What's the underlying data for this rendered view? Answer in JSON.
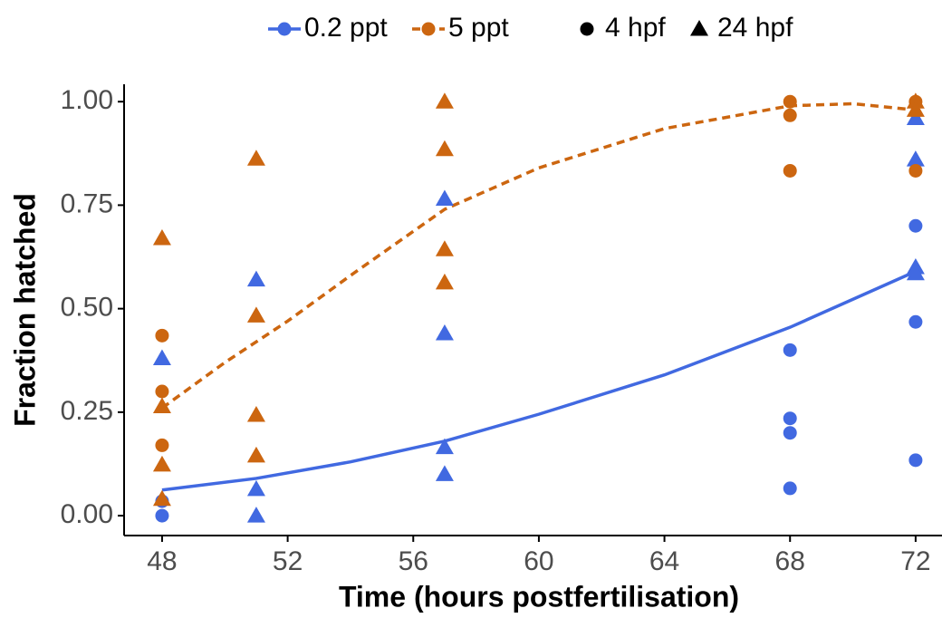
{
  "chart_data": {
    "type": "scatter",
    "x_label": "Time (hours postfertilisation)",
    "y_label": "Fraction hatched",
    "xlim": [
      46.79,
      72.84
    ],
    "ylim": [
      -0.048,
      1.042
    ],
    "xticks": [
      48,
      52,
      56,
      60,
      64,
      68,
      72
    ],
    "yticks": [
      {
        "value": 0,
        "label": "0.00"
      },
      {
        "value": 0.25,
        "label": "0.25"
      },
      {
        "value": 0.5,
        "label": "0.50"
      },
      {
        "value": 0.75,
        "label": "0.75"
      },
      {
        "value": 1,
        "label": "1.00"
      }
    ],
    "color_legend": [
      {
        "name": "0.2 ppt",
        "color": "#4169e1",
        "dashed": false
      },
      {
        "name": "5 ppt",
        "color": "#cc6610",
        "dashed": true
      }
    ],
    "shape_legend": [
      {
        "name": "4 hpf",
        "shape": "circle"
      },
      {
        "name": "24 hpf",
        "shape": "triangle"
      }
    ],
    "series": [
      {
        "salinity": 0,
        "stage": 0,
        "x": [
          48,
          48,
          68,
          68,
          68,
          68,
          72,
          72,
          72
        ],
        "values": [
          0.0,
          0.035,
          0.4,
          0.235,
          0.2,
          0.066,
          0.7,
          0.468,
          0.134
        ]
      },
      {
        "salinity": 0,
        "stage": 1,
        "x": [
          48,
          51,
          51,
          51,
          57,
          57,
          57,
          57,
          72,
          72,
          72,
          72
        ],
        "values": [
          0.38,
          0.57,
          0.064,
          0.0,
          0.765,
          0.44,
          0.165,
          0.1,
          0.96,
          0.86,
          0.6,
          0.585
        ]
      },
      {
        "salinity": 1,
        "stage": 0,
        "x": [
          48,
          48,
          48,
          68,
          68,
          68,
          72,
          72
        ],
        "values": [
          0.435,
          0.3,
          0.17,
          1.0,
          0.967,
          0.833,
          1.0,
          0.833
        ]
      },
      {
        "salinity": 1,
        "stage": 1,
        "x": [
          48,
          48,
          48,
          48,
          51,
          51,
          51,
          51,
          57,
          57,
          57,
          57,
          72,
          72
        ],
        "values": [
          0.67,
          0.264,
          0.123,
          0.04,
          0.862,
          0.483,
          0.243,
          0.145,
          1.0,
          0.885,
          0.643,
          0.563,
          1.0,
          0.98
        ]
      }
    ],
    "fits": [
      {
        "salinity": 0,
        "x": [
          48,
          51,
          54,
          57,
          60,
          64,
          68,
          72
        ],
        "values": [
          0.062,
          0.09,
          0.13,
          0.18,
          0.245,
          0.34,
          0.455,
          0.59
        ]
      },
      {
        "salinity": 1,
        "x": [
          48,
          50,
          52,
          54,
          57,
          60,
          64,
          68,
          70,
          72
        ],
        "values": [
          0.26,
          0.37,
          0.47,
          0.58,
          0.74,
          0.84,
          0.935,
          0.99,
          0.995,
          0.98
        ]
      }
    ]
  }
}
